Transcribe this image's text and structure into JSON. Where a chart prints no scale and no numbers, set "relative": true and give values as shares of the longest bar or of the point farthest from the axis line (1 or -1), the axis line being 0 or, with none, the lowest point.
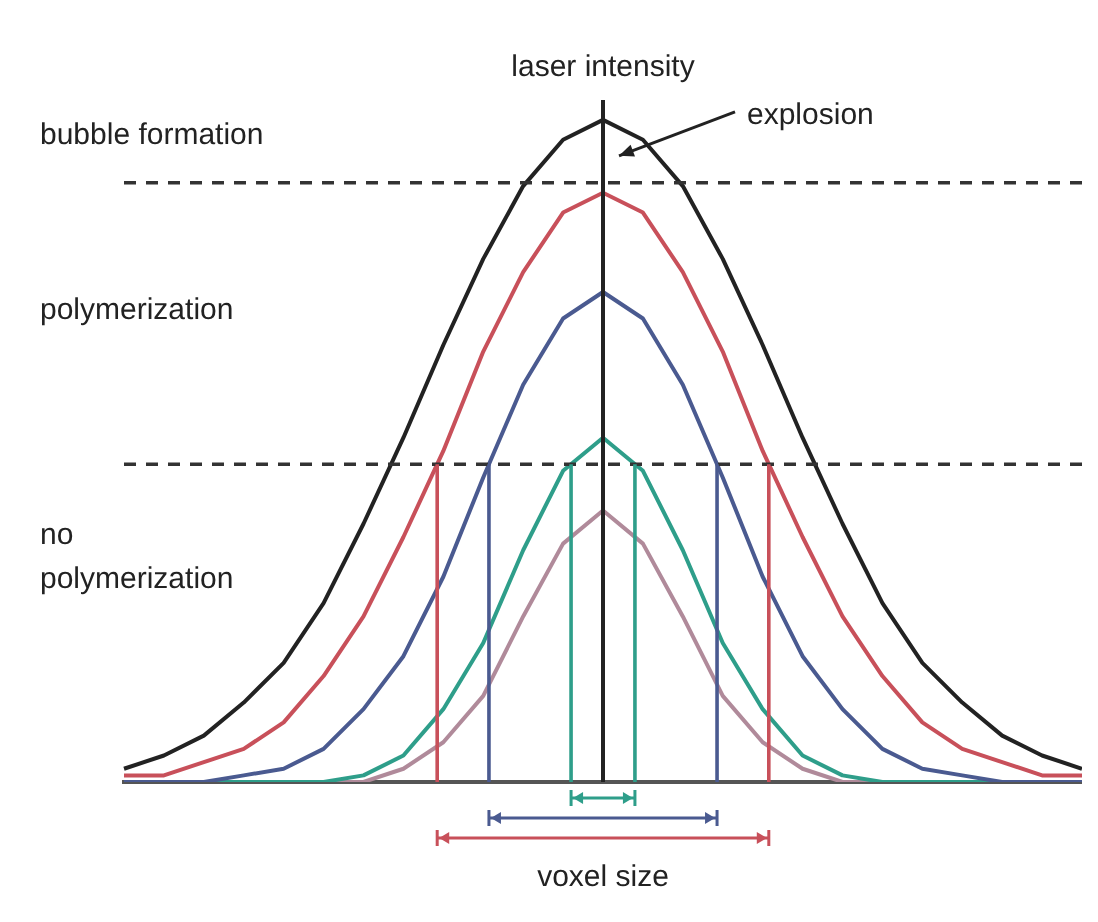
{
  "chart_data": {
    "type": "line",
    "relative": true,
    "ylabel": "laser intensity",
    "xlabel": "voxel size",
    "categories": [
      null,
      null,
      null,
      null,
      null,
      null,
      null,
      null,
      null,
      null,
      null,
      null,
      null,
      null,
      null,
      null,
      null,
      null,
      null,
      null,
      null,
      null,
      null,
      null,
      null
    ],
    "legend": false,
    "grid": false,
    "marker": "none",
    "line_style": "solid",
    "series": [
      {
        "color": "#222222",
        "values": [
          0.02,
          0.04,
          0.07,
          0.12,
          0.18,
          0.27,
          0.39,
          0.52,
          0.66,
          0.79,
          0.9,
          0.97,
          1,
          0.97,
          0.9,
          0.79,
          0.66,
          0.52,
          0.39,
          0.27,
          0.18,
          0.12,
          0.07,
          0.04,
          0.02
        ]
      },
      {
        "color": "#c8505a",
        "values": [
          0.01,
          0.01,
          0.03,
          0.05,
          0.09,
          0.16,
          0.25,
          0.37,
          0.5,
          0.65,
          0.77,
          0.86,
          0.89,
          0.86,
          0.77,
          0.65,
          0.5,
          0.37,
          0.25,
          0.16,
          0.09,
          0.05,
          0.03,
          0.01,
          0.01
        ]
      },
      {
        "color": "#4a5a90",
        "values": [
          0,
          0,
          0,
          0.01,
          0.02,
          0.05,
          0.11,
          0.19,
          0.31,
          0.46,
          0.6,
          0.7,
          0.74,
          0.7,
          0.6,
          0.46,
          0.31,
          0.19,
          0.11,
          0.05,
          0.02,
          0.01,
          0,
          0,
          0
        ]
      },
      {
        "color": "#2e9e8a",
        "values": [
          0,
          0,
          0,
          0,
          0,
          0,
          0.01,
          0.04,
          0.11,
          0.21,
          0.35,
          0.47,
          0.52,
          0.47,
          0.35,
          0.21,
          0.11,
          0.04,
          0.01,
          0,
          0,
          0,
          0,
          0,
          0
        ]
      },
      {
        "color": "#b08a9a",
        "values": [
          0,
          0,
          0,
          0,
          0,
          0,
          0,
          0.02,
          0.06,
          0.13,
          0.25,
          0.36,
          0.41,
          0.36,
          0.25,
          0.13,
          0.06,
          0.02,
          0,
          0,
          0,
          0,
          0,
          0,
          0
        ]
      }
    ],
    "ref_lines": [
      {
        "axis": "y",
        "value": 0.905,
        "color": "#333333",
        "line_style": "dashed"
      },
      {
        "axis": "y",
        "value": 0.48,
        "color": "#333333",
        "line_style": "dashed"
      }
    ],
    "annotations": [
      "bubble formation",
      "polymerization",
      "no\npolymerization",
      "explosion"
    ]
  }
}
